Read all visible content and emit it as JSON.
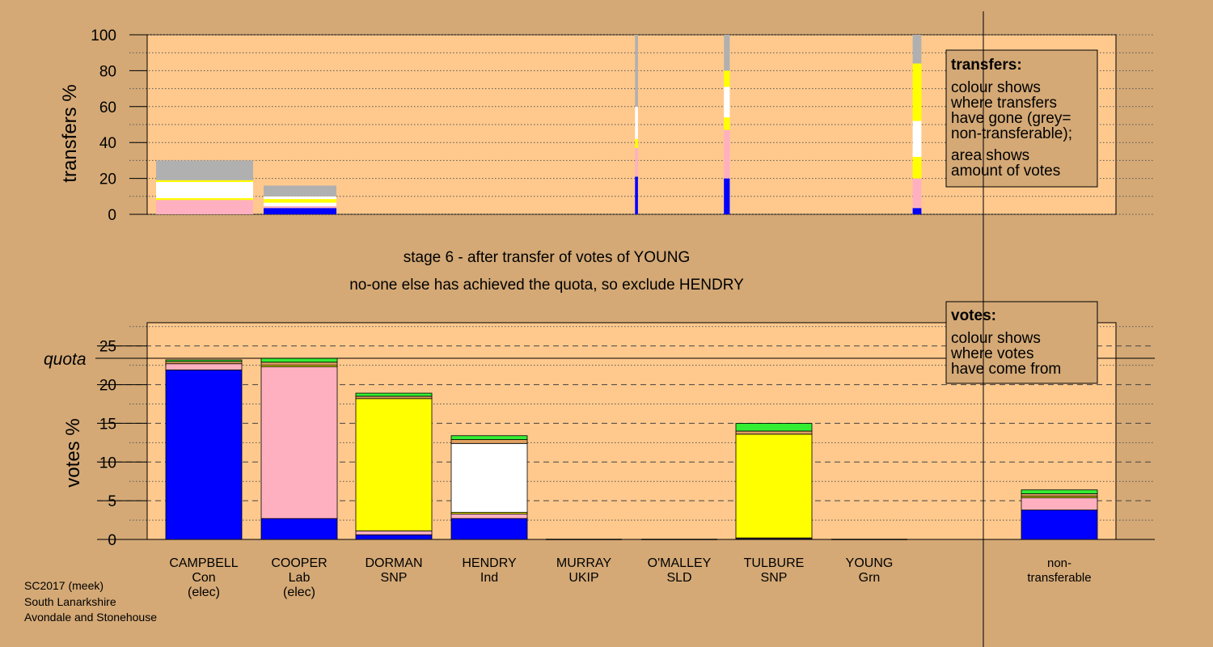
{
  "colors": {
    "page_bg": "#d4a976",
    "panel_bg": "#ffc98d",
    "Con": "#0000ff",
    "Lab": "#ffb0c0",
    "SNP": "#ffff00",
    "Ind": "#ffffff",
    "SLD": "#e0a060",
    "Grn": "#33ee33",
    "nontransferable": "#b0b0b0"
  },
  "stage_title": "stage 6 - after transfer of votes of YOUNG",
  "stage_subtitle": "no-one else has achieved the quota, so exclude HENDRY",
  "footer": [
    "SC2017 (meek)",
    "South Lanarkshire",
    "Avondale and Stonehouse"
  ],
  "transfers_legend": {
    "title": "transfers:",
    "lines": [
      "colour shows",
      "where transfers",
      "have gone (grey=",
      "non-transferable);"
    ],
    "lines2": [
      "area shows",
      "amount of votes"
    ]
  },
  "votes_legend": {
    "title": "votes:",
    "lines": [
      "colour shows",
      "where votes",
      "have come from"
    ]
  },
  "candidates": [
    {
      "name": "CAMPBELL",
      "party": "Con",
      "status": "(elec)"
    },
    {
      "name": "COOPER",
      "party": "Lab",
      "status": "(elec)"
    },
    {
      "name": "DORMAN",
      "party": "SNP",
      "status": ""
    },
    {
      "name": "HENDRY",
      "party": "Ind",
      "status": ""
    },
    {
      "name": "MURRAY",
      "party": "UKIP",
      "status": ""
    },
    {
      "name": "O'MALLEY",
      "party": "SLD",
      "status": ""
    },
    {
      "name": "TULBURE",
      "party": "SNP",
      "status": ""
    },
    {
      "name": "YOUNG",
      "party": "Grn",
      "status": ""
    }
  ],
  "nontransferable_label": [
    "non-",
    "transferable"
  ],
  "chart_data": [
    {
      "type": "bar",
      "stacked": true,
      "ylabel": "transfers %",
      "ylim": [
        0,
        100
      ],
      "yticks": [
        0,
        20,
        40,
        60,
        80,
        100
      ],
      "minor_grid_step": 10,
      "note": "transfer width proportional to votes transferred",
      "bars": [
        {
          "position": 0,
          "width_share": 1.0,
          "segments": [
            {
              "to": "Lab",
              "value": 8
            },
            {
              "to": "SNP",
              "value": 1
            },
            {
              "to": "Ind",
              "value": 9
            },
            {
              "to": "SNP",
              "value": 1
            },
            {
              "to": "non-transferable",
              "value": 11
            }
          ]
        },
        {
          "position": 1,
          "width_share": 0.75,
          "segments": [
            {
              "to": "Con",
              "value": 3.5
            },
            {
              "to": "Lab",
              "value": 1
            },
            {
              "to": "Ind",
              "value": 2
            },
            {
              "to": "SNP",
              "value": 2
            },
            {
              "to": "Ind",
              "value": 1.5
            },
            {
              "to": "non-transferable",
              "value": 6
            }
          ]
        },
        {
          "position": 4.55,
          "width_share": 0.03,
          "segments": [
            {
              "to": "Con",
              "value": 21
            },
            {
              "to": "Lab",
              "value": 16
            },
            {
              "to": "SNP",
              "value": 5
            },
            {
              "to": "Ind",
              "value": 18
            },
            {
              "to": "non-transferable",
              "value": 40
            }
          ]
        },
        {
          "position": 5.5,
          "width_share": 0.06,
          "segments": [
            {
              "to": "Con",
              "value": 20
            },
            {
              "to": "Lab",
              "value": 27
            },
            {
              "to": "SNP",
              "value": 7
            },
            {
              "to": "Ind",
              "value": 17
            },
            {
              "to": "SNP",
              "value": 9
            },
            {
              "to": "non-transferable",
              "value": 20
            }
          ]
        },
        {
          "position": 7.5,
          "width_share": 0.09,
          "segments": [
            {
              "to": "Con",
              "value": 3.5
            },
            {
              "to": "Lab",
              "value": 16.5
            },
            {
              "to": "SNP",
              "value": 12
            },
            {
              "to": "Ind",
              "value": 20
            },
            {
              "to": "SNP",
              "value": 32
            },
            {
              "to": "non-transferable",
              "value": 16
            }
          ]
        }
      ]
    },
    {
      "type": "bar",
      "stacked": true,
      "ylabel": "votes %",
      "ylim": [
        0,
        28
      ],
      "yticks": [
        0,
        5,
        10,
        15,
        20,
        25
      ],
      "quota": 23.4,
      "quota_label": "quota",
      "categories": [
        "CAMPBELL",
        "COOPER",
        "DORMAN",
        "HENDRY",
        "MURRAY",
        "O'MALLEY",
        "TULBURE",
        "YOUNG",
        "non-transferable"
      ],
      "series": [
        {
          "name": "Con",
          "values": [
            21.9,
            2.7,
            0.6,
            2.7,
            0,
            0,
            0.1,
            0,
            3.8
          ]
        },
        {
          "name": "Lab",
          "values": [
            0.8,
            19.6,
            0.5,
            0.6,
            0,
            0,
            0.1,
            0,
            1.6
          ]
        },
        {
          "name": "SNP",
          "values": [
            0,
            0.2,
            17.1,
            0.2,
            0,
            0,
            13.4,
            0,
            0.2
          ]
        },
        {
          "name": "Ind",
          "values": [
            0,
            0,
            0,
            8.9,
            0,
            0,
            0,
            0,
            0
          ]
        },
        {
          "name": "SLD",
          "values": [
            0.3,
            0.4,
            0.3,
            0.5,
            0,
            0,
            0.4,
            0,
            0.3
          ]
        },
        {
          "name": "Grn",
          "values": [
            0.2,
            0.5,
            0.4,
            0.5,
            0,
            0,
            1.0,
            0,
            0.5
          ]
        }
      ]
    }
  ]
}
